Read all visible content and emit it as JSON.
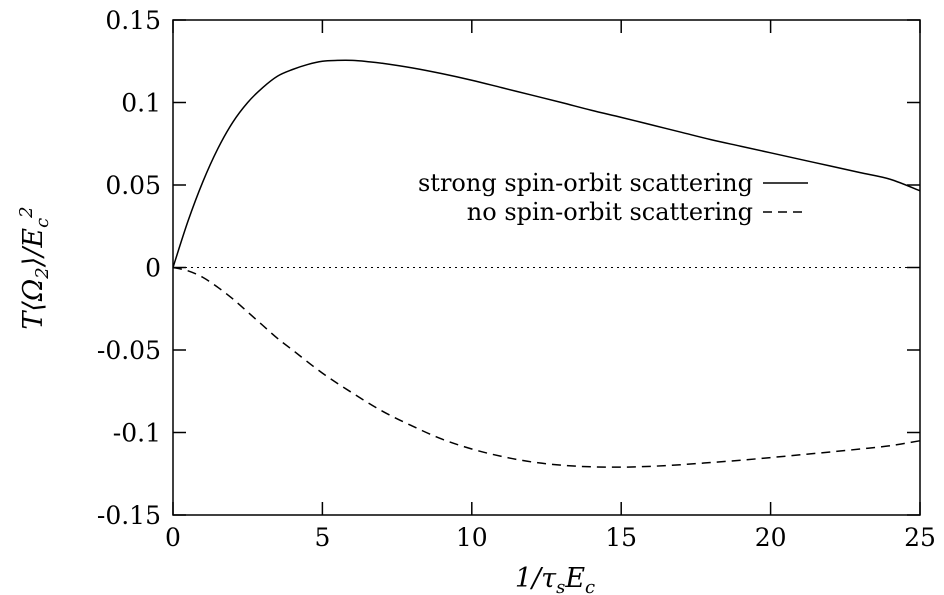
{
  "chart_data": {
    "type": "line",
    "xlabel": "1/τsEc",
    "ylabel": "T⟨Ω2⟩/Ec²",
    "xlim": [
      0,
      25
    ],
    "ylim": [
      -0.15,
      0.15
    ],
    "x_ticks": [
      "0",
      "5",
      "10",
      "15",
      "20",
      "25"
    ],
    "y_ticks": [
      "-0.15",
      "-0.1",
      "-0.05",
      "0",
      "0.05",
      "0.1",
      "0.15"
    ],
    "grid": false,
    "legend_position": "right",
    "zero_line": {
      "y": 0,
      "style": "dotted"
    },
    "series": [
      {
        "name": "strong spin-orbit scattering",
        "style": "solid",
        "x": [
          0,
          0.5,
          1,
          1.5,
          2,
          2.5,
          3,
          3.5,
          4,
          4.5,
          5,
          5.5,
          6,
          6.5,
          7,
          8,
          9,
          10,
          11,
          12,
          13,
          14,
          15,
          16,
          17,
          18,
          19,
          20,
          21,
          22,
          23,
          24,
          25
        ],
        "y": [
          0,
          0.028,
          0.052,
          0.072,
          0.088,
          0.1,
          0.109,
          0.116,
          0.12,
          0.123,
          0.125,
          0.1255,
          0.1255,
          0.1248,
          0.1238,
          0.121,
          0.1175,
          0.1135,
          0.109,
          0.1045,
          0.1,
          0.0953,
          0.091,
          0.0865,
          0.082,
          0.0775,
          0.0735,
          0.0695,
          0.0655,
          0.0615,
          0.0575,
          0.0535,
          0.0465
        ]
      },
      {
        "name": "no spin-orbit scattering",
        "style": "dashed",
        "x": [
          0,
          0.5,
          1,
          1.5,
          2,
          2.5,
          3,
          3.5,
          4,
          5,
          6,
          7,
          8,
          9,
          10,
          11,
          12,
          13,
          14,
          15,
          16,
          17,
          18,
          19,
          20,
          21,
          22,
          23,
          24,
          25
        ],
        "y": [
          0,
          -0.002,
          -0.006,
          -0.012,
          -0.019,
          -0.027,
          -0.035,
          -0.043,
          -0.05,
          -0.064,
          -0.076,
          -0.087,
          -0.096,
          -0.104,
          -0.11,
          -0.1145,
          -0.1178,
          -0.1198,
          -0.1208,
          -0.121,
          -0.1205,
          -0.1195,
          -0.1182,
          -0.1168,
          -0.1152,
          -0.1135,
          -0.1118,
          -0.11,
          -0.108,
          -0.105
        ]
      }
    ]
  }
}
